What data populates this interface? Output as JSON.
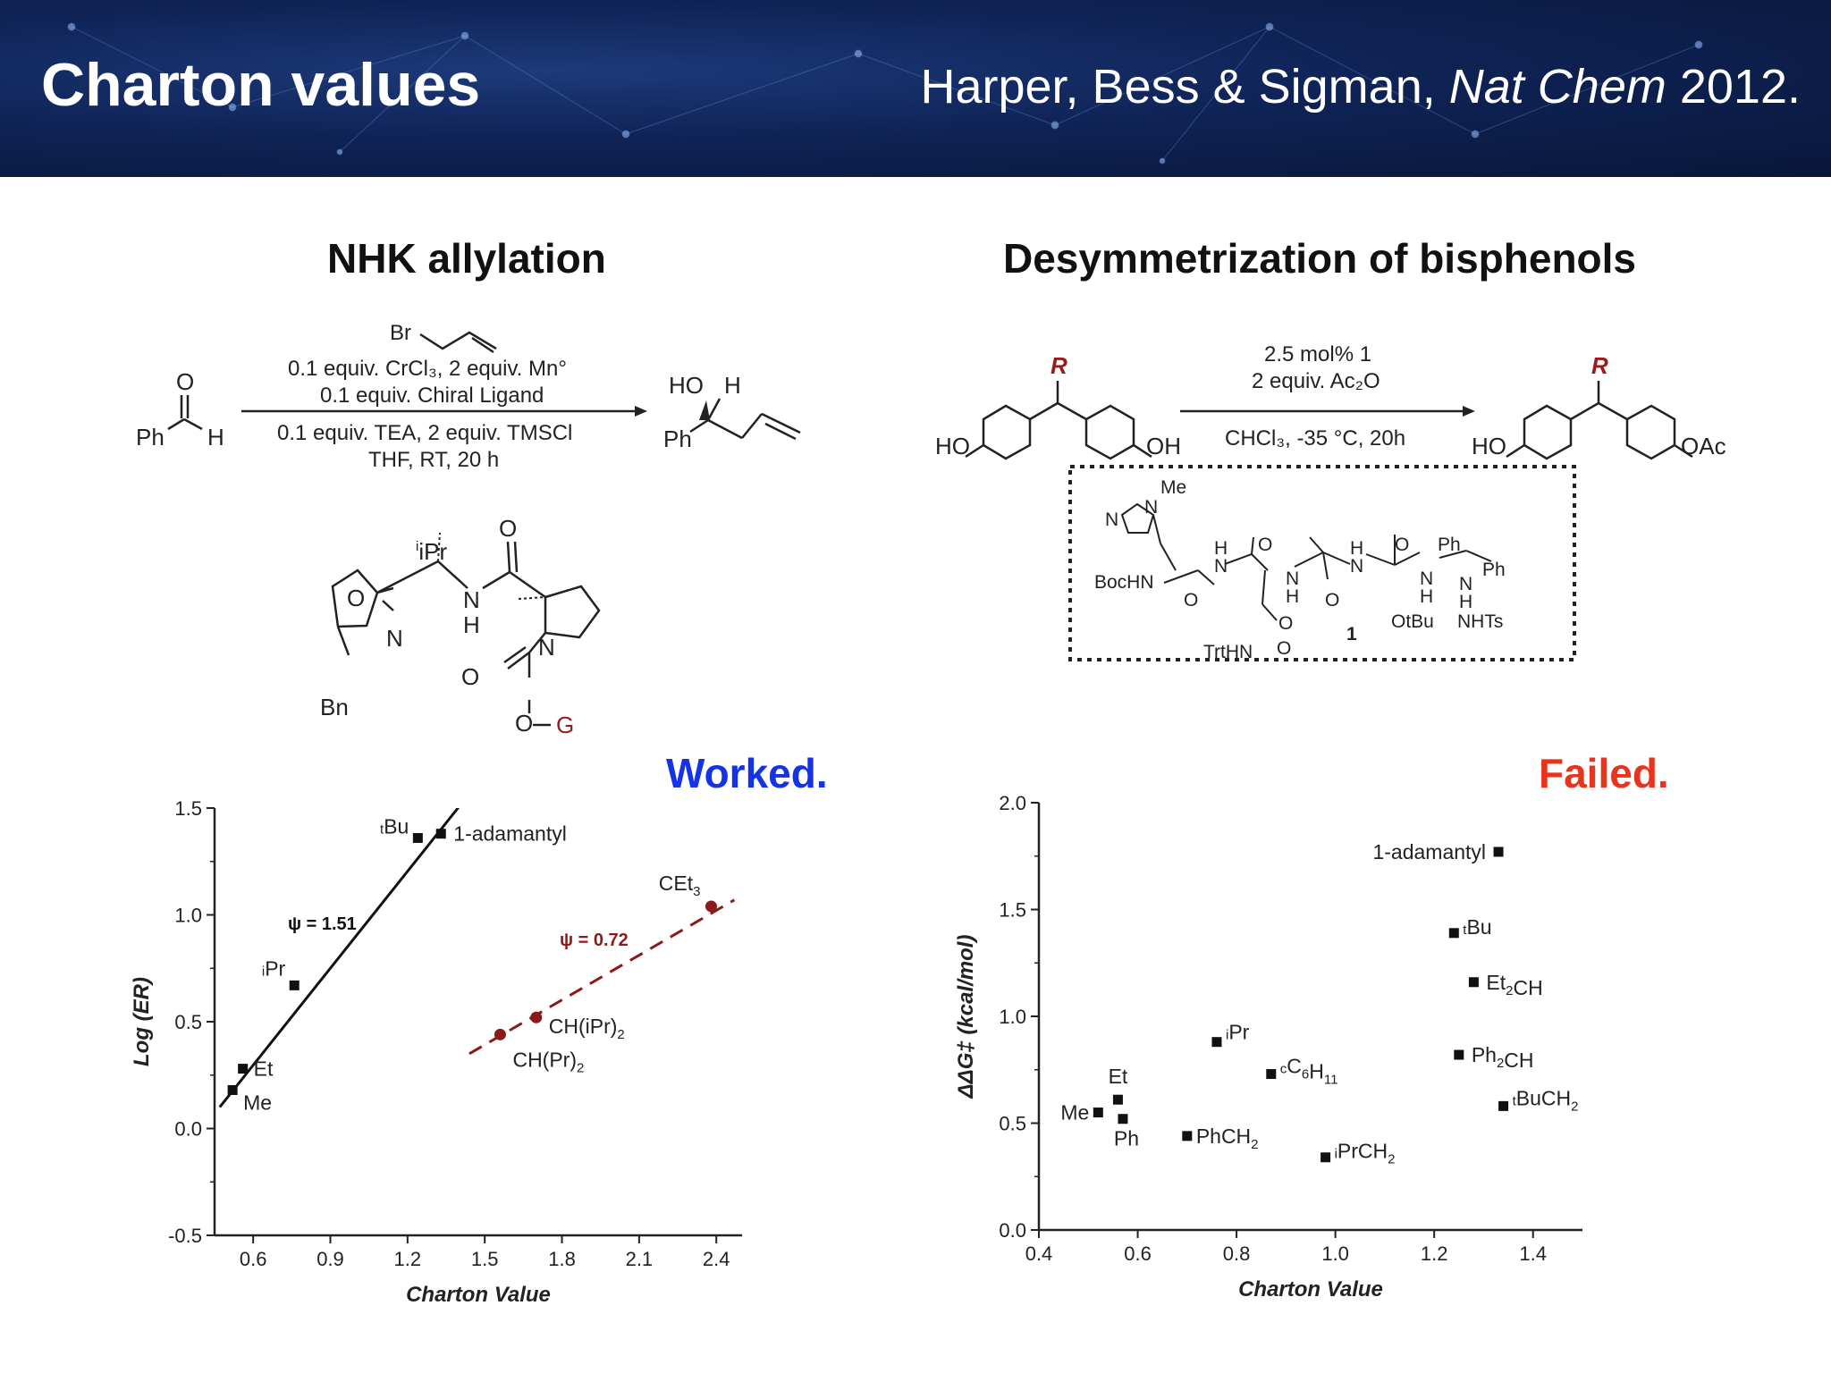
{
  "header": {
    "title": "Charton values",
    "citation_authors": "Harper, Bess & Sigman,",
    "citation_journal": "Nat Chem",
    "citation_year": "2012."
  },
  "left": {
    "title": "NHK allylation",
    "verdict": "Worked.",
    "verdict_color": "#1432e6",
    "reagents": [
      "Br",
      "0.1 equiv. CrCl₃, 2 equiv. Mn°",
      "0.1 equiv. Chiral Ligand",
      "0.1 equiv. TEA, 2 equiv. TMSCl",
      "THF, RT, 20 h"
    ],
    "atoms": {
      "reactant": [
        "O",
        "Ph",
        "H"
      ],
      "product": [
        "HO",
        "H",
        "Ph"
      ],
      "ligand": [
        "iPr",
        "O",
        "O",
        "N",
        "N",
        "H",
        "N",
        "O",
        "Bn",
        "O",
        "G"
      ]
    }
  },
  "right": {
    "title": "Desymmetrization of bisphenols",
    "verdict": "Failed.",
    "verdict_color": "#e8341c",
    "reagents": [
      "2.5 mol% 1",
      "2 equiv. Ac₂O",
      "CHCl₃, -35 °C, 20h"
    ],
    "atoms": {
      "reactant": [
        "R",
        "HO",
        "OH"
      ],
      "product": [
        "R",
        "HO",
        "OAc"
      ],
      "catalyst": [
        "Me",
        "N",
        "N",
        "BocHN",
        "H",
        "N",
        "O",
        "O",
        "H",
        "N",
        "O",
        "O",
        "H",
        "N",
        "H",
        "N",
        "O",
        "OtBu",
        "Ph",
        "Ph",
        "H",
        "N",
        "NHTs",
        "TrtHN",
        "O",
        "1"
      ]
    }
  },
  "chart_data": [
    {
      "type": "scatter",
      "xlabel": "Charton Value",
      "ylabel": "Log (ER)",
      "xlim": [
        0.45,
        2.5
      ],
      "ylim": [
        -0.5,
        1.5
      ],
      "xticks": [
        "0.6",
        "0.9",
        "1.2",
        "1.5",
        "1.8",
        "2.1",
        "2.4"
      ],
      "yticks": [
        "-0.5",
        "0.0",
        "0.5",
        "1.0",
        "1.5"
      ],
      "series": [
        {
          "name": "ψ = 1.51",
          "marker": "square",
          "color": "#111111",
          "fit": {
            "style": "solid",
            "x": [
              0.47,
              1.68
            ],
            "y": [
              0.1,
              1.93
            ]
          },
          "points": [
            {
              "label": "Me",
              "x": 0.52,
              "y": 0.18
            },
            {
              "label": "Et",
              "x": 0.56,
              "y": 0.28
            },
            {
              "label": "iPr",
              "x": 0.76,
              "y": 0.67
            },
            {
              "label": "tBu",
              "x": 1.24,
              "y": 1.36
            },
            {
              "label": "1-adamantyl",
              "x": 1.33,
              "y": 1.38
            }
          ]
        },
        {
          "name": "ψ = 0.72",
          "marker": "circle",
          "color": "#8b1a1a",
          "fit": {
            "style": "dashed",
            "x": [
              1.44,
              2.47
            ],
            "y": [
              0.35,
              1.07
            ]
          },
          "points": [
            {
              "label": "CH(Pr)2",
              "x": 1.56,
              "y": 0.44
            },
            {
              "label": "CH(iPr)2",
              "x": 1.7,
              "y": 0.52
            },
            {
              "label": "CEt3",
              "x": 2.38,
              "y": 1.04
            }
          ]
        }
      ]
    },
    {
      "type": "scatter",
      "xlabel": "Charton Value",
      "ylabel": "ΔΔG‡ (kcal/mol)",
      "xlim": [
        0.4,
        1.5
      ],
      "ylim": [
        0.0,
        2.0
      ],
      "xticks": [
        "0.4",
        "0.6",
        "0.8",
        "1.0",
        "1.2",
        "1.4"
      ],
      "yticks": [
        "0.0",
        "0.5",
        "1.0",
        "1.5",
        "2.0"
      ],
      "series": [
        {
          "name": "",
          "marker": "square",
          "color": "#111111",
          "points": [
            {
              "label": "Me",
              "x": 0.52,
              "y": 0.55
            },
            {
              "label": "Et",
              "x": 0.56,
              "y": 0.61
            },
            {
              "label": "Ph",
              "x": 0.57,
              "y": 0.52
            },
            {
              "label": "PhCH2",
              "x": 0.7,
              "y": 0.44
            },
            {
              "label": "iPr",
              "x": 0.76,
              "y": 0.88
            },
            {
              "label": "cC6H11",
              "x": 0.87,
              "y": 0.73
            },
            {
              "label": "iPrCH2",
              "x": 0.98,
              "y": 0.34
            },
            {
              "label": "tBu",
              "x": 1.24,
              "y": 1.39
            },
            {
              "label": "Ph2CH",
              "x": 1.25,
              "y": 0.82
            },
            {
              "label": "Et2CH",
              "x": 1.28,
              "y": 1.16
            },
            {
              "label": "1-adamantyl",
              "x": 1.33,
              "y": 1.77
            },
            {
              "label": "tBuCH2",
              "x": 1.34,
              "y": 0.58
            }
          ]
        }
      ]
    }
  ]
}
